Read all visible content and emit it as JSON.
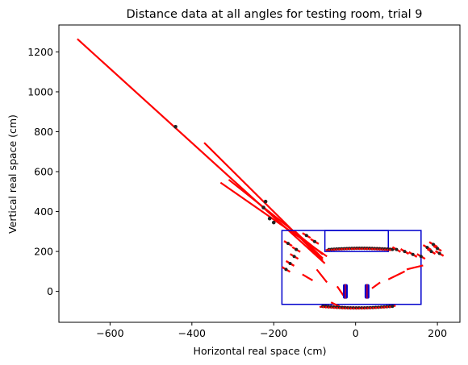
{
  "chart_data": {
    "type": "scatter",
    "title": "Distance data at all angles for testing room, trial 9",
    "xlabel": "Horizontal real space (cm)",
    "ylabel": "Vertical real space (cm)",
    "xlim": [
      -725,
      255
    ],
    "ylim": [
      -155,
      1335
    ],
    "xticks": [
      -600,
      -400,
      -200,
      0,
      200
    ],
    "xtick_labels": [
      "−600",
      "−400",
      "−200",
      "0",
      "200"
    ],
    "yticks": [
      0,
      200,
      400,
      600,
      800,
      1000,
      1200
    ],
    "ytick_labels": [
      "0",
      "200",
      "400",
      "600",
      "800",
      "1000",
      "1200"
    ],
    "grid": false,
    "colors": {
      "rays": "#ff0000",
      "boxes": "#0000cc",
      "points": "#222222"
    },
    "boxes": [
      {
        "x0": -180,
        "y0": -65,
        "x1": 160,
        "y1": 305
      },
      {
        "x0": -75,
        "y0": 200,
        "x1": 80,
        "y1": 305
      }
    ],
    "rays": [
      {
        "x0": -680,
        "y0": 1265,
        "x1": -75,
        "y1": 140
      },
      {
        "x0": -370,
        "y0": 745,
        "x1": -80,
        "y1": 155
      },
      {
        "x0": -330,
        "y0": 545,
        "x1": -70,
        "y1": 175
      },
      {
        "x0": -310,
        "y0": 560,
        "x1": -80,
        "y1": 185
      },
      {
        "x0": -150,
        "y0": 305,
        "x1": -80,
        "y1": 165
      }
    ],
    "dots": [
      {
        "x": -440,
        "y": 825
      },
      {
        "x": -220,
        "y": 450
      },
      {
        "x": -200,
        "y": 345
      },
      {
        "x": -225,
        "y": 420
      },
      {
        "x": -210,
        "y": 365
      }
    ],
    "top_arc": {
      "x_start": -65,
      "x_end": 90,
      "y": 210
    },
    "bottom_arc": {
      "x_start": -80,
      "x_end": 90,
      "y": -75
    },
    "left_cluster": [
      {
        "x": -165,
        "y": 240
      },
      {
        "x": -145,
        "y": 210
      },
      {
        "x": -150,
        "y": 175
      },
      {
        "x": -160,
        "y": 140
      },
      {
        "x": -170,
        "y": 110
      },
      {
        "x": -120,
        "y": 280
      },
      {
        "x": -100,
        "y": 250
      }
    ],
    "right_cluster": [
      {
        "x": 100,
        "y": 210
      },
      {
        "x": 120,
        "y": 200
      },
      {
        "x": 140,
        "y": 185
      },
      {
        "x": 160,
        "y": 175
      },
      {
        "x": 175,
        "y": 220
      },
      {
        "x": 190,
        "y": 235
      },
      {
        "x": 200,
        "y": 215
      },
      {
        "x": 205,
        "y": 190
      },
      {
        "x": 185,
        "y": 200
      }
    ],
    "center_posts": [
      {
        "x": -25,
        "y": 0
      },
      {
        "x": 28,
        "y": 0
      }
    ],
    "diag_segments": [
      {
        "x0": -95,
        "y0": 110,
        "x1": -70,
        "y1": 45
      },
      {
        "x0": -45,
        "y0": 25,
        "x1": -25,
        "y1": -35
      },
      {
        "x0": 40,
        "y0": 15,
        "x1": 60,
        "y1": 45
      },
      {
        "x0": 80,
        "y0": 60,
        "x1": 120,
        "y1": 100
      },
      {
        "x0": 125,
        "y0": 110,
        "x1": 165,
        "y1": 130
      },
      {
        "x0": -130,
        "y0": 85,
        "x1": -105,
        "y1": 55
      },
      {
        "x0": -60,
        "y0": -55,
        "x1": -40,
        "y1": -75
      }
    ]
  }
}
